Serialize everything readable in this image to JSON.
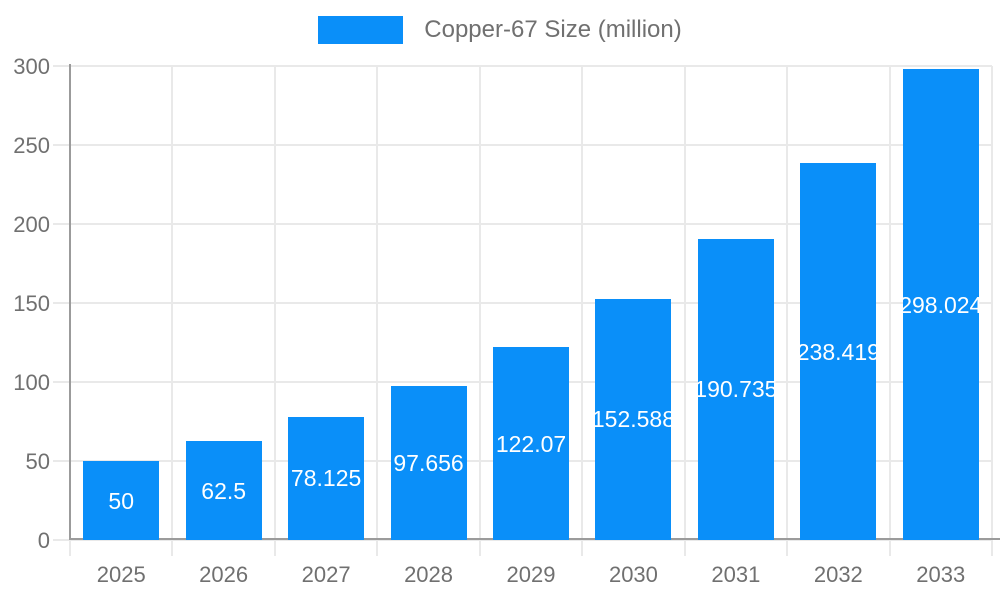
{
  "chart_data": {
    "type": "bar",
    "title": "",
    "categories": [
      "2025",
      "2026",
      "2027",
      "2028",
      "2029",
      "2030",
      "2031",
      "2032",
      "2033"
    ],
    "series": [
      {
        "name": "Copper-67 Size (million)",
        "values": [
          50,
          62.5,
          78.125,
          97.656,
          122.07,
          152.588,
          190.735,
          238.419,
          298.024
        ]
      }
    ],
    "value_labels": [
      "50",
      "62.5",
      "78.125",
      "97.656",
      "122.07",
      "152.588",
      "190.735",
      "238.419",
      "298.024"
    ],
    "xlabel": "",
    "ylabel": "",
    "ylim": [
      0,
      300
    ],
    "yticks": [
      0,
      50,
      100,
      150,
      200,
      250,
      300
    ],
    "grid": true,
    "legend_position": "top-center",
    "colors": {
      "bar": "#0a8ff9",
      "grid": "#e9e9e9",
      "axis": "#9b9b9b",
      "tick_label": "#707070",
      "value_label": "#ffffff",
      "background": "#ffffff"
    }
  }
}
